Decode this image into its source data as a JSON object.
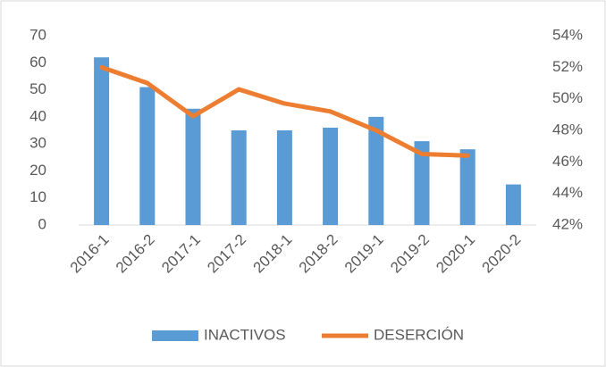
{
  "chart_data": {
    "type": "bar_line",
    "categories": [
      "2016-1",
      "2016-2",
      "2017-1",
      "2017-2",
      "2018-1",
      "2018-2",
      "2019-1",
      "2019-2",
      "2020-1",
      "2020-2"
    ],
    "series": [
      {
        "name": "INACTIVOS",
        "color": "#5b9bd5",
        "type": "bar",
        "values": [
          62,
          51,
          43,
          35,
          35,
          36,
          40,
          31,
          28,
          15
        ]
      },
      {
        "name": "DESERCIÓN",
        "color": "#ed7d31",
        "type": "line",
        "axis": "y2",
        "values": [
          52.0,
          51.0,
          48.9,
          50.6,
          49.7,
          49.2,
          48.0,
          46.5,
          46.4,
          null
        ]
      }
    ],
    "ylim": [
      0,
      70
    ],
    "yticks": [
      0,
      10,
      20,
      30,
      40,
      50,
      60,
      70
    ],
    "y2lim": [
      42,
      54
    ],
    "y2ticks": [
      {
        "value": 42,
        "label": "42%"
      },
      {
        "value": 44,
        "label": "44%"
      },
      {
        "value": 46,
        "label": "46%"
      },
      {
        "value": 48,
        "label": "48%"
      },
      {
        "value": 50,
        "label": "50%"
      },
      {
        "value": 52,
        "label": "52%"
      },
      {
        "value": 54,
        "label": "54%"
      }
    ],
    "legend": "bottom"
  }
}
